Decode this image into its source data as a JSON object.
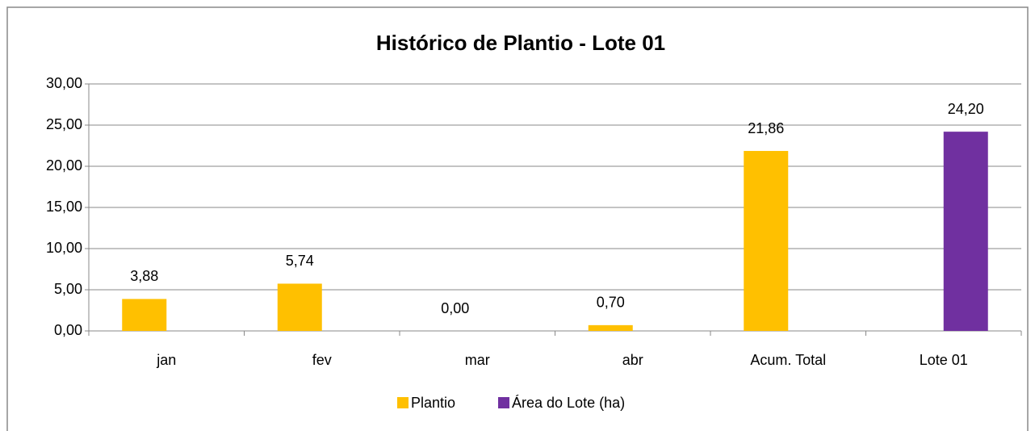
{
  "chart_data": {
    "type": "bar",
    "title": "Histórico de Plantio - Lote 01",
    "categories": [
      "jan",
      "fev",
      "mar",
      "abr",
      "Acum. Total",
      "Lote 01"
    ],
    "series": [
      {
        "name": "Plantio",
        "color": "#ffc000",
        "values": [
          3.88,
          5.74,
          0,
          0.7,
          21.86,
          null
        ],
        "value_labels": [
          "3,88",
          "5,74",
          "0,00",
          "0,70",
          "21,86",
          null
        ]
      },
      {
        "name": "Área do Lote (ha)",
        "color": "#7030a0",
        "values": [
          null,
          null,
          null,
          null,
          null,
          24.2
        ],
        "value_labels": [
          null,
          null,
          null,
          null,
          null,
          "24,20"
        ]
      }
    ],
    "ylim": [
      0,
      30
    ],
    "yticks": [
      {
        "value": 0,
        "label": "0,00"
      },
      {
        "value": 5,
        "label": "5,00"
      },
      {
        "value": 10,
        "label": "10,00"
      },
      {
        "value": 15,
        "label": "15,00"
      },
      {
        "value": 20,
        "label": "20,00"
      },
      {
        "value": 25,
        "label": "25,00"
      },
      {
        "value": 30,
        "label": "30,00"
      }
    ],
    "grid": true,
    "legend": "bottom"
  }
}
